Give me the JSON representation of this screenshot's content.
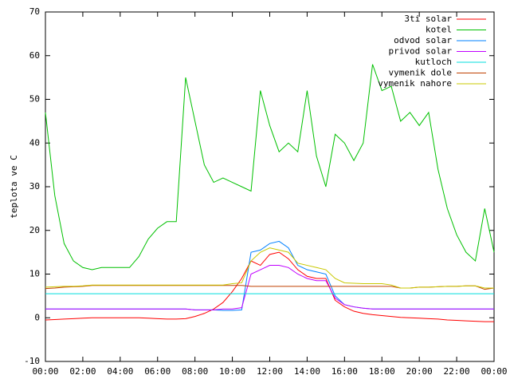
{
  "chart_data": {
    "type": "line",
    "ylabel": "teplota ve C",
    "x": [
      0,
      0.5,
      1,
      1.5,
      2,
      2.5,
      3,
      3.5,
      4,
      4.5,
      5,
      5.5,
      6,
      6.5,
      7,
      7.5,
      8,
      8.5,
      9,
      9.5,
      10,
      10.5,
      11,
      11.5,
      12,
      12.5,
      13,
      13.5,
      14,
      14.5,
      15,
      15.5,
      16,
      16.5,
      17,
      17.5,
      18,
      18.5,
      19,
      19.5,
      20,
      20.5,
      21,
      21.5,
      22,
      22.5,
      23,
      23.5,
      24
    ],
    "xlim": [
      0,
      24
    ],
    "xticks": [
      {
        "value": 0,
        "label": "00:00"
      },
      {
        "value": 2,
        "label": "02:00"
      },
      {
        "value": 4,
        "label": "04:00"
      },
      {
        "value": 6,
        "label": "06:00"
      },
      {
        "value": 8,
        "label": "08:00"
      },
      {
        "value": 10,
        "label": "10:00"
      },
      {
        "value": 12,
        "label": "12:00"
      },
      {
        "value": 14,
        "label": "14:00"
      },
      {
        "value": 16,
        "label": "16:00"
      },
      {
        "value": 18,
        "label": "18:00"
      },
      {
        "value": 20,
        "label": "20:00"
      },
      {
        "value": 22,
        "label": "22:00"
      },
      {
        "value": 24,
        "label": "00:00"
      }
    ],
    "ylim": [
      -10,
      70
    ],
    "yticks": [
      -10,
      0,
      10,
      20,
      30,
      40,
      50,
      60,
      70
    ],
    "grid": false,
    "legend": "top-right",
    "series": [
      {
        "name": "3ti solar",
        "color": "#ff0000",
        "values": [
          -0.5,
          -0.4,
          -0.3,
          -0.2,
          -0.1,
          0,
          0,
          0,
          0,
          0,
          0,
          -0.1,
          -0.2,
          -0.3,
          -0.3,
          -0.2,
          0.3,
          1,
          2,
          3.5,
          6,
          9,
          13,
          12,
          14.5,
          15,
          13.5,
          11,
          9.5,
          9,
          9,
          4,
          2.5,
          1.5,
          1,
          0.7,
          0.5,
          0.3,
          0.1,
          0,
          -0.1,
          -0.2,
          -0.3,
          -0.5,
          -0.6,
          -0.7,
          -0.8,
          -0.9,
          -0.9
        ]
      },
      {
        "name": "kotel",
        "color": "#00c000",
        "values": [
          47,
          28,
          17,
          13,
          11.5,
          11,
          11.5,
          11.5,
          11.5,
          11.5,
          14,
          18,
          20.5,
          22,
          22,
          55,
          45,
          35,
          31,
          32,
          31,
          30,
          29,
          52,
          44,
          38,
          40,
          38,
          52,
          37,
          30,
          42,
          40,
          36,
          40,
          58,
          52,
          53,
          45,
          47,
          44,
          47,
          34,
          25,
          19,
          15,
          13,
          25,
          15
        ]
      },
      {
        "name": "odvod solar",
        "color": "#0080ff",
        "values": [
          2,
          2,
          2,
          2,
          2,
          2,
          2,
          2,
          2,
          2,
          2,
          2,
          2,
          2,
          2,
          2,
          1.8,
          1.8,
          1.8,
          1.7,
          1.7,
          1.8,
          15,
          15.5,
          17,
          17.5,
          16,
          12,
          11,
          10.5,
          10,
          5,
          3,
          2.5,
          2.2,
          2,
          2,
          2,
          2,
          2,
          2,
          2,
          2,
          2,
          2,
          2,
          2,
          2,
          2
        ]
      },
      {
        "name": "privod solar",
        "color": "#c000ff",
        "values": [
          2,
          2,
          2,
          2,
          2,
          2,
          2,
          2,
          2,
          2,
          2,
          2,
          2,
          2,
          2,
          2,
          1.8,
          1.8,
          1.8,
          2,
          2,
          2.3,
          10,
          11,
          12,
          12,
          11.5,
          10,
          9,
          8.5,
          8.5,
          4.5,
          3,
          2.5,
          2.2,
          2,
          2,
          2,
          2,
          2,
          2,
          2,
          2,
          2,
          2,
          2,
          2,
          2,
          2
        ]
      },
      {
        "name": "kutloch",
        "color": "#00dddd",
        "values": [
          5.5,
          5.5,
          5.5,
          5.5,
          5.5,
          5.5,
          5.5,
          5.5,
          5.5,
          5.5,
          5.5,
          5.5,
          5.5,
          5.5,
          5.5,
          5.5,
          5.5,
          5.5,
          5.5,
          5.5,
          5.5,
          5.5,
          5.5,
          5.5,
          5.5,
          5.5,
          5.5,
          5.5,
          5.5,
          5.5,
          5.5,
          5.5,
          5.5,
          5.5,
          5.5,
          5.5,
          5.5,
          5.5,
          5.5,
          5.5,
          5.5,
          5.5,
          5.5,
          5.5,
          5.5,
          5.5,
          5.5,
          5.5,
          5.5
        ]
      },
      {
        "name": "vymenik dole",
        "color": "#c04000",
        "values": [
          6.7,
          6.8,
          7,
          7.1,
          7.2,
          7.4,
          7.4,
          7.4,
          7.4,
          7.4,
          7.4,
          7.4,
          7.4,
          7.4,
          7.4,
          7.4,
          7.4,
          7.4,
          7.4,
          7.4,
          7.4,
          7.4,
          7.2,
          7.2,
          7.2,
          7.2,
          7.2,
          7.2,
          7.2,
          7.2,
          7.2,
          7.2,
          7.2,
          7.2,
          7.2,
          7.2,
          7.2,
          7.2,
          6.8,
          6.8,
          7,
          7,
          7.1,
          7.2,
          7.2,
          7.3,
          7.3,
          6.5,
          6.8
        ]
      },
      {
        "name": "vymenik nahore",
        "color": "#c8c800",
        "values": [
          7,
          7.1,
          7.2,
          7.2,
          7.3,
          7.5,
          7.5,
          7.5,
          7.5,
          7.5,
          7.5,
          7.5,
          7.5,
          7.5,
          7.5,
          7.5,
          7.5,
          7.5,
          7.5,
          7.5,
          7.8,
          8,
          13,
          15,
          16,
          15.5,
          15,
          12.5,
          12,
          11.5,
          11,
          9,
          8,
          7.9,
          7.8,
          7.8,
          7.8,
          7.5,
          6.8,
          6.8,
          7,
          7,
          7.1,
          7.2,
          7.2,
          7.3,
          7.3,
          6.8,
          6.8
        ]
      }
    ]
  }
}
